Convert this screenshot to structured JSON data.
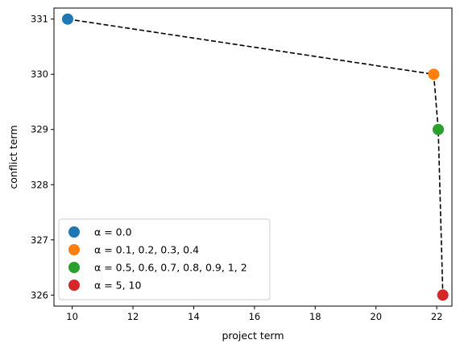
{
  "chart_data": {
    "type": "scatter",
    "title": "",
    "xlabel": "project term",
    "ylabel": "conflict term",
    "xlim": [
      9.4,
      22.5
    ],
    "ylim": [
      325.8,
      331.2
    ],
    "xticks": [
      "10",
      "12",
      "14",
      "16",
      "18",
      "20",
      "22"
    ],
    "yticks": [
      "326",
      "327",
      "328",
      "329",
      "330",
      "331"
    ],
    "grid": false,
    "legend_position": "lower-left",
    "connecting_line": {
      "style": "dashed",
      "color": "#000000"
    },
    "series": [
      {
        "name": "α = 0.0",
        "color": "#1f77b4",
        "points": [
          [
            9.85,
            331.0
          ]
        ]
      },
      {
        "name": "α = 0.1, 0.2, 0.3, 0.4",
        "color": "#ff7f0e",
        "points": [
          [
            21.9,
            330.0
          ]
        ]
      },
      {
        "name": "α = 0.5, 0.6, 0.7, 0.8, 0.9, 1, 2",
        "color": "#2ca02c",
        "points": [
          [
            22.05,
            329.0
          ]
        ]
      },
      {
        "name": "α = 5, 10",
        "color": "#d62728",
        "points": [
          [
            22.2,
            326.0
          ]
        ]
      }
    ]
  }
}
